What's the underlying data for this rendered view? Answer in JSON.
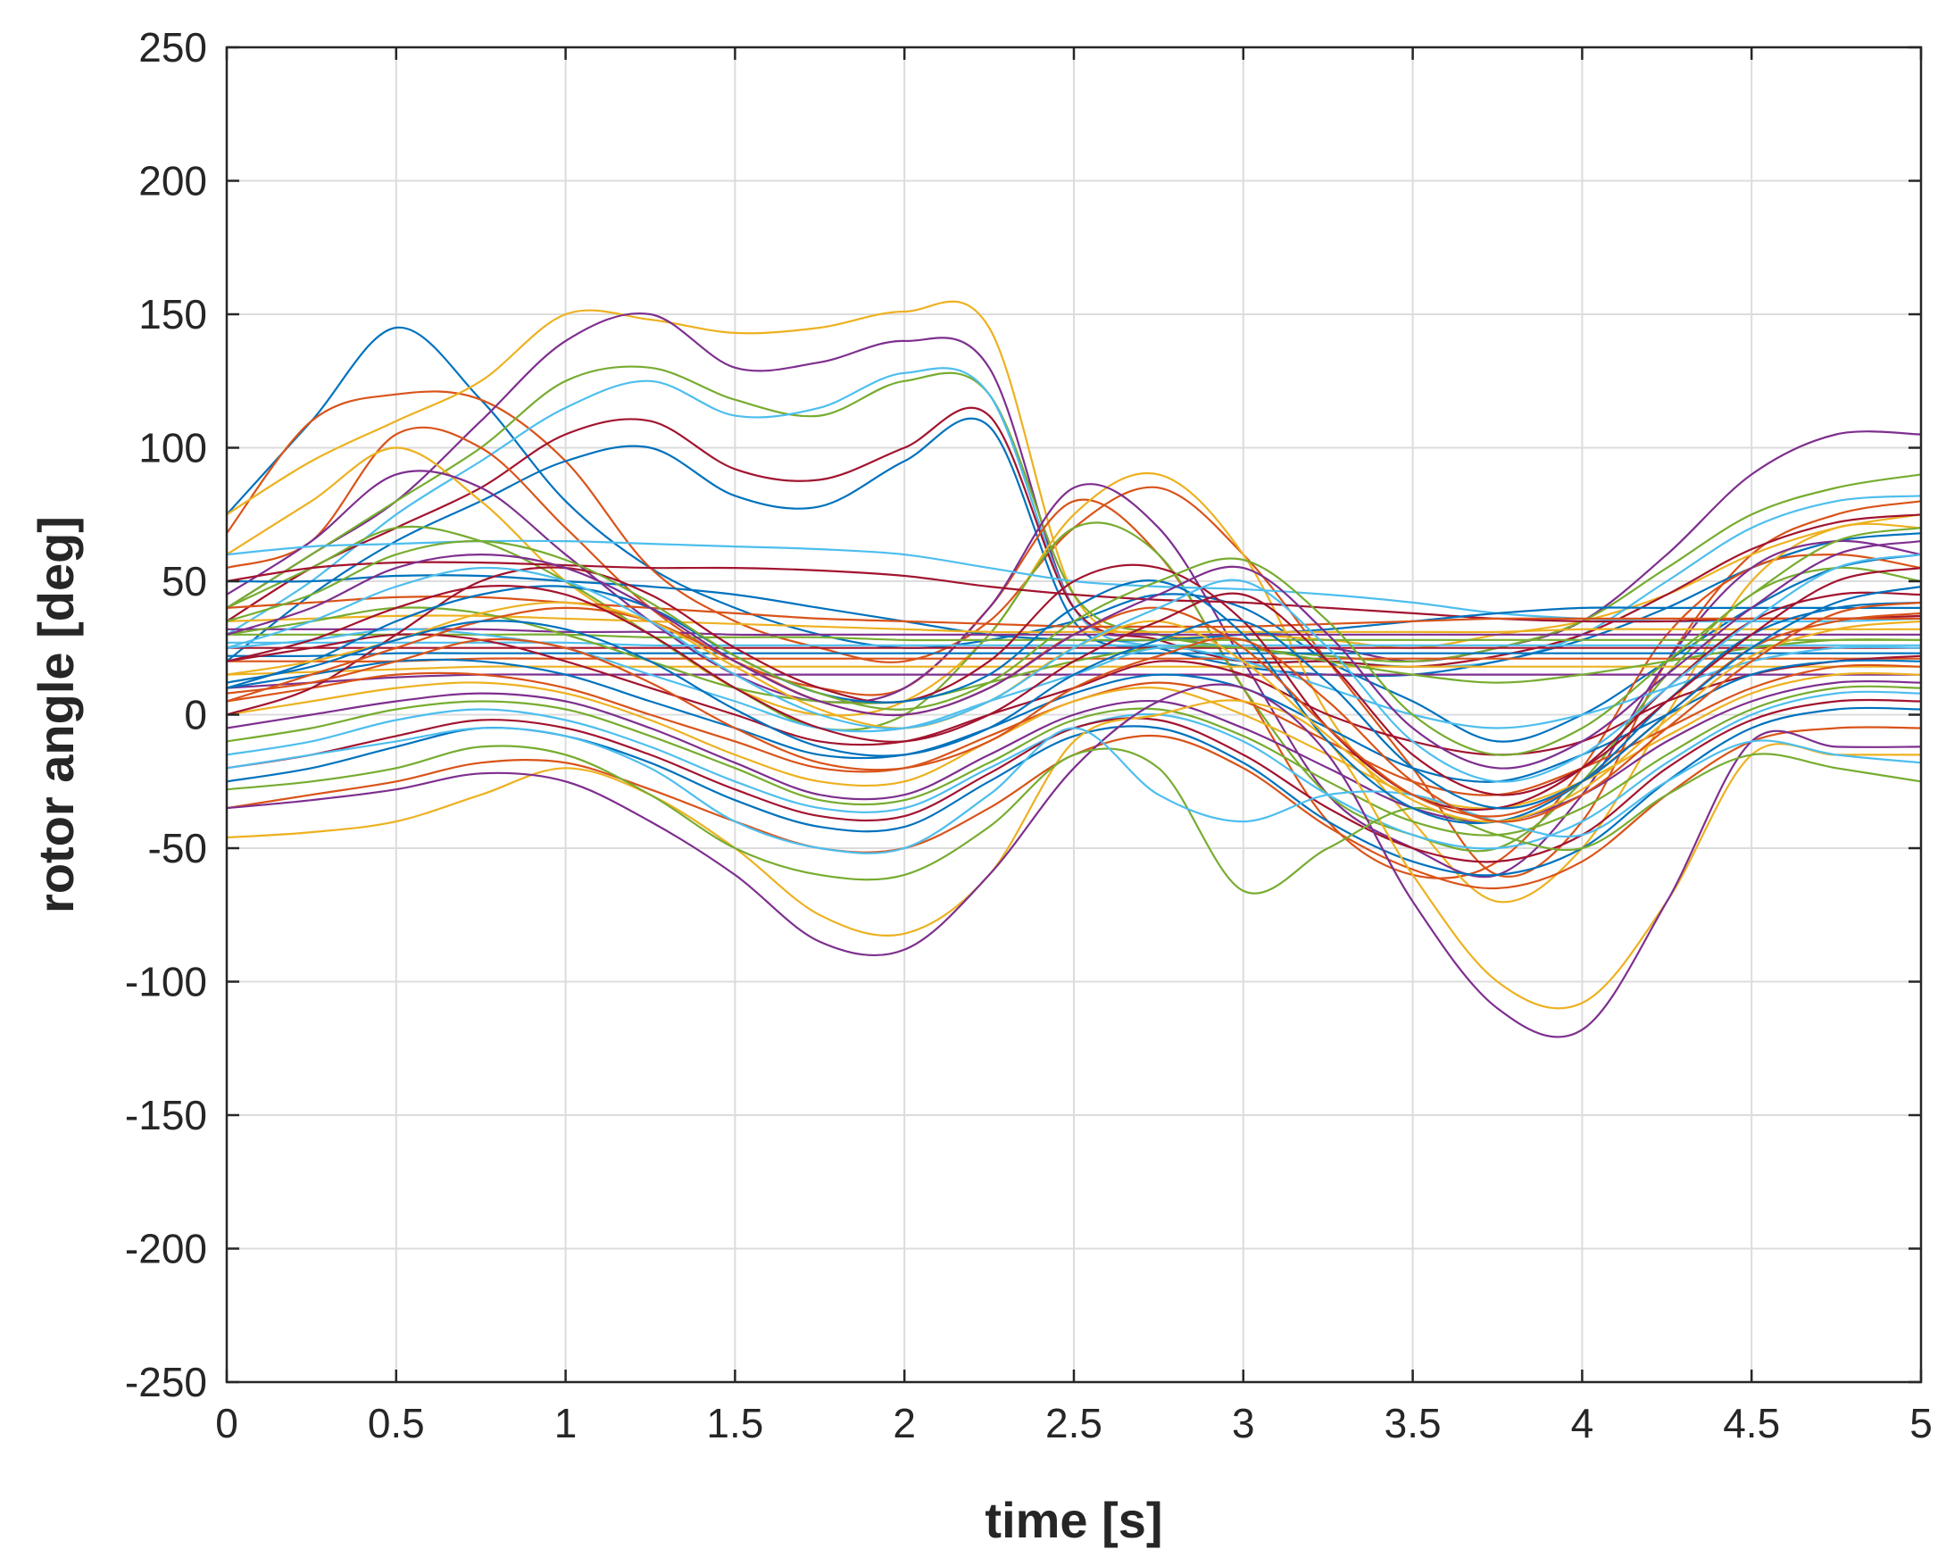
{
  "chart_data": {
    "type": "line",
    "title": "",
    "xlabel": "time [s]",
    "ylabel": "rotor angle [deg]",
    "xlim": [
      0,
      5
    ],
    "ylim": [
      -250,
      250
    ],
    "xticks": [
      0,
      0.5,
      1,
      1.5,
      2,
      2.5,
      3,
      3.5,
      4,
      4.5,
      5
    ],
    "xtick_labels": [
      "0",
      "0.5",
      "1",
      "1.5",
      "2",
      "2.5",
      "3",
      "3.5",
      "4",
      "4.5",
      "5"
    ],
    "yticks": [
      250,
      200,
      150,
      100,
      50,
      0,
      -50,
      -100,
      -150,
      -200,
      -250
    ],
    "ytick_labels": [
      "250",
      "200",
      "150",
      "100",
      "50",
      "0",
      "-50",
      "-100",
      "-150",
      "-200",
      "-250"
    ],
    "grid": true,
    "legend": "none",
    "colors": [
      "#0072BD",
      "#D95319",
      "#EDB120",
      "#7E2F8E",
      "#77AC30",
      "#4DBEEE",
      "#A2142F"
    ],
    "x": [
      0,
      0.25,
      0.5,
      0.75,
      1,
      1.25,
      1.5,
      1.75,
      2,
      2.25,
      2.5,
      2.75,
      3,
      3.25,
      3.5,
      3.75,
      4,
      4.25,
      4.5,
      4.75,
      5
    ],
    "series": [
      {
        "values": [
          75,
          110,
          145,
          118,
          80,
          55,
          40,
          30,
          25,
          28,
          35,
          45,
          40,
          20,
          5,
          -10,
          0,
          20,
          40,
          55,
          60
        ]
      },
      {
        "values": [
          68,
          110,
          120,
          118,
          95,
          55,
          35,
          25,
          20,
          35,
          70,
          85,
          60,
          20,
          -20,
          -60,
          -40,
          20,
          60,
          75,
          80
        ]
      },
      {
        "values": [
          75,
          95,
          110,
          125,
          150,
          148,
          143,
          145,
          151,
          145,
          45,
          30,
          30,
          28,
          25,
          30,
          35,
          45,
          60,
          70,
          75
        ]
      },
      {
        "values": [
          40,
          60,
          80,
          110,
          140,
          150,
          130,
          132,
          140,
          130,
          40,
          30,
          25,
          25,
          20,
          25,
          35,
          60,
          90,
          105,
          105
        ]
      },
      {
        "values": [
          40,
          60,
          80,
          100,
          125,
          130,
          118,
          112,
          125,
          120,
          45,
          30,
          25,
          22,
          20,
          25,
          35,
          55,
          75,
          85,
          90
        ]
      },
      {
        "values": [
          30,
          50,
          75,
          95,
          115,
          125,
          112,
          115,
          128,
          120,
          40,
          25,
          20,
          20,
          18,
          20,
          30,
          50,
          70,
          80,
          82
        ]
      },
      {
        "values": [
          35,
          55,
          70,
          85,
          105,
          110,
          92,
          88,
          100,
          112,
          40,
          28,
          20,
          20,
          18,
          22,
          30,
          45,
          62,
          72,
          75
        ]
      },
      {
        "values": [
          20,
          45,
          65,
          80,
          95,
          100,
          82,
          78,
          95,
          108,
          35,
          25,
          18,
          15,
          15,
          20,
          28,
          40,
          55,
          65,
          68
        ]
      },
      {
        "values": [
          55,
          65,
          105,
          100,
          70,
          40,
          20,
          10,
          10,
          40,
          80,
          60,
          10,
          -40,
          -60,
          -55,
          -20,
          30,
          55,
          60,
          55
        ]
      },
      {
        "values": [
          60,
          80,
          100,
          80,
          50,
          30,
          10,
          0,
          5,
          30,
          75,
          90,
          60,
          0,
          -40,
          -70,
          -50,
          0,
          50,
          70,
          70
        ]
      },
      {
        "values": [
          45,
          65,
          90,
          85,
          60,
          35,
          15,
          5,
          10,
          40,
          85,
          70,
          20,
          -30,
          -50,
          -60,
          -30,
          20,
          55,
          65,
          60
        ]
      },
      {
        "values": [
          40,
          55,
          70,
          65,
          50,
          30,
          10,
          -5,
          0,
          30,
          70,
          60,
          10,
          -30,
          -45,
          -50,
          -25,
          15,
          45,
          55,
          50
        ]
      },
      {
        "values": [
          60,
          63,
          64,
          65,
          65,
          64,
          63,
          62,
          60,
          55,
          50,
          48,
          47,
          45,
          42,
          38,
          36,
          35,
          35,
          35,
          36
        ]
      },
      {
        "values": [
          50,
          55,
          57,
          57,
          56,
          55,
          55,
          54,
          52,
          48,
          45,
          43,
          42,
          40,
          38,
          36,
          35,
          35,
          36,
          36,
          37
        ]
      },
      {
        "values": [
          50,
          50,
          52,
          52,
          50,
          48,
          45,
          40,
          35,
          30,
          28,
          28,
          30,
          32,
          35,
          38,
          40,
          40,
          40,
          40,
          40
        ]
      },
      {
        "values": [
          40,
          42,
          44,
          44,
          42,
          40,
          38,
          36,
          35,
          34,
          33,
          33,
          33,
          34,
          35,
          36,
          36,
          36,
          36,
          36,
          36
        ]
      },
      {
        "values": [
          35,
          36,
          37,
          37,
          36,
          35,
          34,
          33,
          32,
          31,
          31,
          31,
          31,
          31,
          31,
          31,
          32,
          32,
          32,
          32,
          32
        ]
      },
      {
        "values": [
          32,
          32,
          32,
          32,
          31,
          31,
          30,
          30,
          30,
          30,
          30,
          30,
          30,
          30,
          30,
          30,
          30,
          30,
          30,
          30,
          30
        ]
      },
      {
        "values": [
          30,
          30,
          30,
          30,
          30,
          29,
          29,
          29,
          28,
          28,
          28,
          28,
          28,
          28,
          28,
          28,
          28,
          28,
          28,
          28,
          28
        ]
      },
      {
        "values": [
          27,
          27,
          27,
          27,
          27,
          26,
          26,
          26,
          26,
          26,
          26,
          26,
          26,
          26,
          26,
          26,
          26,
          26,
          26,
          26,
          26
        ]
      },
      {
        "values": [
          25,
          25,
          25,
          25,
          25,
          25,
          25,
          25,
          25,
          25,
          25,
          25,
          25,
          25,
          25,
          25,
          25,
          25,
          25,
          25,
          25
        ]
      },
      {
        "values": [
          22,
          22,
          23,
          23,
          23,
          23,
          23,
          23,
          23,
          23,
          23,
          23,
          23,
          23,
          23,
          23,
          23,
          23,
          23,
          23,
          23
        ]
      },
      {
        "values": [
          20,
          20,
          20,
          21,
          21,
          21,
          21,
          21,
          21,
          21,
          21,
          21,
          21,
          21,
          21,
          21,
          21,
          21,
          21,
          21,
          21
        ]
      },
      {
        "values": [
          15,
          16,
          17,
          18,
          18,
          18,
          18,
          18,
          18,
          18,
          18,
          18,
          18,
          18,
          18,
          18,
          18,
          18,
          18,
          18,
          18
        ]
      },
      {
        "values": [
          10,
          12,
          14,
          15,
          15,
          15,
          15,
          15,
          15,
          15,
          15,
          15,
          15,
          15,
          15,
          15,
          15,
          15,
          15,
          15,
          15
        ]
      },
      {
        "values": [
          30,
          35,
          40,
          38,
          30,
          20,
          10,
          5,
          5,
          12,
          20,
          25,
          25,
          20,
          15,
          12,
          15,
          20,
          25,
          28,
          28
        ]
      },
      {
        "values": [
          25,
          28,
          32,
          30,
          25,
          15,
          5,
          -5,
          -5,
          5,
          15,
          25,
          20,
          10,
          0,
          -5,
          0,
          10,
          20,
          25,
          25
        ]
      },
      {
        "values": [
          20,
          25,
          30,
          28,
          20,
          10,
          0,
          -10,
          -10,
          0,
          10,
          20,
          15,
          0,
          -10,
          -15,
          -10,
          5,
          15,
          20,
          22
        ]
      },
      {
        "values": [
          10,
          15,
          20,
          20,
          15,
          5,
          -5,
          -15,
          -15,
          -5,
          8,
          15,
          10,
          -5,
          -20,
          -25,
          -15,
          0,
          15,
          20,
          20
        ]
      },
      {
        "values": [
          5,
          10,
          15,
          15,
          10,
          0,
          -10,
          -20,
          -20,
          -8,
          5,
          12,
          5,
          -10,
          -25,
          -30,
          -20,
          -5,
          10,
          18,
          18
        ]
      },
      {
        "values": [
          0,
          5,
          10,
          12,
          8,
          -2,
          -15,
          -25,
          -25,
          -10,
          5,
          10,
          0,
          -15,
          -30,
          -35,
          -25,
          -8,
          8,
          15,
          15
        ]
      },
      {
        "values": [
          -5,
          0,
          5,
          8,
          5,
          -5,
          -18,
          -30,
          -30,
          -15,
          0,
          5,
          -5,
          -20,
          -35,
          -40,
          -30,
          -10,
          5,
          12,
          12
        ]
      },
      {
        "values": [
          -10,
          -5,
          2,
          5,
          2,
          -8,
          -20,
          -32,
          -32,
          -18,
          -2,
          2,
          -8,
          -25,
          -40,
          -45,
          -35,
          -15,
          2,
          10,
          10
        ]
      },
      {
        "values": [
          -15,
          -10,
          -2,
          2,
          -2,
          -12,
          -25,
          -35,
          -35,
          -20,
          -5,
          0,
          -10,
          -30,
          -45,
          -50,
          -40,
          -18,
          0,
          8,
          8
        ]
      },
      {
        "values": [
          -20,
          -15,
          -8,
          -2,
          -5,
          -15,
          -28,
          -38,
          -38,
          -22,
          -5,
          -2,
          -15,
          -35,
          -50,
          -55,
          -45,
          -20,
          -2,
          5,
          5
        ]
      },
      {
        "values": [
          -25,
          -20,
          -12,
          -5,
          -8,
          -18,
          -32,
          -42,
          -42,
          -25,
          -8,
          -5,
          -18,
          -40,
          -55,
          -60,
          -50,
          -25,
          -5,
          2,
          2
        ]
      },
      {
        "values": [
          -35,
          -30,
          -25,
          -18,
          -18,
          -28,
          -40,
          -50,
          -50,
          -35,
          -15,
          -8,
          -20,
          -42,
          -58,
          -65,
          -55,
          -30,
          -10,
          -5,
          -5
        ]
      },
      {
        "values": [
          -46,
          -44,
          -40,
          -30,
          -20,
          -30,
          -50,
          -75,
          -82,
          -60,
          -10,
          0,
          5,
          -10,
          -60,
          -100,
          -108,
          -70,
          -15,
          -15,
          -15
        ]
      },
      {
        "values": [
          -35,
          -32,
          -28,
          -22,
          -25,
          -40,
          -60,
          -85,
          -88,
          -60,
          -20,
          5,
          10,
          -15,
          -70,
          -110,
          -118,
          -70,
          -10,
          -12,
          -12
        ]
      },
      {
        "values": [
          -28,
          -25,
          -20,
          -12,
          -15,
          -30,
          -50,
          -60,
          -60,
          -42,
          -15,
          -20,
          -66,
          -50,
          -35,
          -45,
          -50,
          -30,
          -15,
          -20,
          -25
        ]
      },
      {
        "values": [
          -20,
          -15,
          -10,
          -5,
          -8,
          -20,
          -40,
          -50,
          -50,
          -30,
          -5,
          -30,
          -40,
          -30,
          -30,
          -40,
          -45,
          -25,
          -10,
          -15,
          -18
        ]
      },
      {
        "values": [
          0,
          10,
          30,
          50,
          55,
          45,
          25,
          10,
          5,
          20,
          50,
          55,
          35,
          -5,
          -30,
          -35,
          -20,
          10,
          35,
          45,
          45
        ]
      },
      {
        "values": [
          10,
          20,
          35,
          45,
          48,
          40,
          22,
          8,
          5,
          15,
          40,
          50,
          30,
          -10,
          -35,
          -40,
          -25,
          5,
          30,
          40,
          42
        ]
      },
      {
        "values": [
          5,
          15,
          25,
          35,
          40,
          35,
          20,
          5,
          0,
          10,
          30,
          40,
          25,
          -5,
          -30,
          -38,
          -25,
          0,
          25,
          35,
          38
        ]
      },
      {
        "values": [
          15,
          20,
          28,
          38,
          42,
          35,
          18,
          2,
          -5,
          5,
          25,
          35,
          20,
          -8,
          -32,
          -40,
          -28,
          -2,
          22,
          32,
          35
        ]
      },
      {
        "values": [
          30,
          40,
          55,
          60,
          55,
          40,
          20,
          5,
          0,
          10,
          30,
          45,
          55,
          30,
          -5,
          -20,
          -10,
          15,
          40,
          60,
          65
        ]
      },
      {
        "values": [
          35,
          45,
          60,
          65,
          58,
          42,
          22,
          8,
          2,
          12,
          35,
          50,
          58,
          35,
          0,
          -15,
          -5,
          20,
          45,
          65,
          70
        ]
      },
      {
        "values": [
          25,
          35,
          48,
          55,
          50,
          35,
          15,
          0,
          -5,
          5,
          25,
          40,
          50,
          25,
          -10,
          -25,
          -15,
          10,
          35,
          55,
          60
        ]
      },
      {
        "values": [
          20,
          28,
          40,
          48,
          45,
          30,
          10,
          -5,
          -10,
          0,
          20,
          35,
          45,
          20,
          -15,
          -30,
          -20,
          5,
          30,
          50,
          55
        ]
      },
      {
        "values": [
          12,
          18,
          28,
          35,
          32,
          20,
          2,
          -12,
          -15,
          -5,
          15,
          28,
          35,
          12,
          -20,
          -35,
          -25,
          0,
          25,
          42,
          48
        ]
      },
      {
        "values": [
          8,
          12,
          20,
          28,
          25,
          12,
          -5,
          -18,
          -20,
          -10,
          10,
          22,
          28,
          5,
          -25,
          -40,
          -30,
          -5,
          20,
          38,
          42
        ]
      }
    ]
  }
}
